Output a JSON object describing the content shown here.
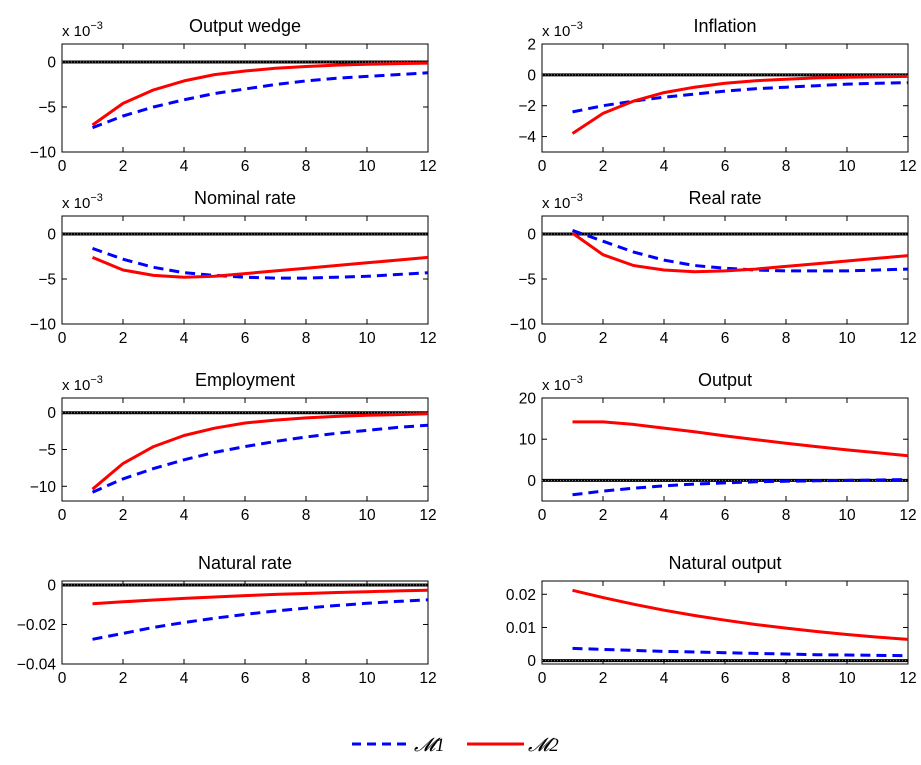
{
  "colors": {
    "m1": "#0000ff",
    "m2": "#ff0000",
    "zero_line": "#000000",
    "axes": "#000000"
  },
  "legend": {
    "placement": "bottom-center",
    "entries": [
      {
        "label": "𝓜1",
        "color": "#0000ff",
        "style": "dashed"
      },
      {
        "label": "𝓜2",
        "color": "#ff0000",
        "style": "solid"
      }
    ]
  },
  "chart_data": [
    {
      "type": "line",
      "title": "Output wedge",
      "scale_label": {
        "base": "x 10",
        "exp": "−3"
      },
      "xlim": [
        0,
        12
      ],
      "ylim": [
        -10,
        2
      ],
      "xticks": [
        0,
        2,
        4,
        6,
        8,
        10,
        12
      ],
      "yticks": [
        -10,
        -5,
        0
      ],
      "ytick_labels": [
        "−10",
        "−5",
        "0"
      ],
      "grid": false,
      "zero_line": true,
      "x": [
        1,
        2,
        3,
        4,
        5,
        6,
        7,
        8,
        9,
        10,
        11,
        12
      ],
      "series": [
        {
          "name": "𝓜1",
          "values": [
            -7.3,
            -6.0,
            -5.0,
            -4.2,
            -3.5,
            -3.0,
            -2.5,
            -2.1,
            -1.8,
            -1.6,
            -1.4,
            -1.2
          ]
        },
        {
          "name": "𝓜2",
          "values": [
            -7.0,
            -4.6,
            -3.1,
            -2.1,
            -1.4,
            -1.0,
            -0.7,
            -0.5,
            -0.35,
            -0.25,
            -0.18,
            -0.12
          ]
        }
      ]
    },
    {
      "type": "line",
      "title": "Inflation",
      "scale_label": {
        "base": "x 10",
        "exp": "−3"
      },
      "xlim": [
        0,
        12
      ],
      "ylim": [
        -5,
        2
      ],
      "xticks": [
        0,
        2,
        4,
        6,
        8,
        10,
        12
      ],
      "yticks": [
        -4,
        -2,
        0,
        2
      ],
      "ytick_labels": [
        "−4",
        "−2",
        "0",
        "2"
      ],
      "grid": false,
      "zero_line": true,
      "x": [
        1,
        2,
        3,
        4,
        5,
        6,
        7,
        8,
        9,
        10,
        11,
        12
      ],
      "series": [
        {
          "name": "𝓜1",
          "values": [
            -2.4,
            -2.0,
            -1.7,
            -1.45,
            -1.25,
            -1.05,
            -0.9,
            -0.8,
            -0.7,
            -0.6,
            -0.55,
            -0.5
          ]
        },
        {
          "name": "𝓜2",
          "values": [
            -3.8,
            -2.5,
            -1.7,
            -1.15,
            -0.8,
            -0.55,
            -0.38,
            -0.28,
            -0.2,
            -0.15,
            -0.12,
            -0.1
          ]
        }
      ]
    },
    {
      "type": "line",
      "title": "Nominal rate",
      "scale_label": {
        "base": "x 10",
        "exp": "−3"
      },
      "xlim": [
        0,
        12
      ],
      "ylim": [
        -10,
        2
      ],
      "xticks": [
        0,
        2,
        4,
        6,
        8,
        10,
        12
      ],
      "yticks": [
        -10,
        -5,
        0
      ],
      "ytick_labels": [
        "−10",
        "−5",
        "0"
      ],
      "grid": false,
      "zero_line": true,
      "x": [
        1,
        2,
        3,
        4,
        5,
        6,
        7,
        8,
        9,
        10,
        11,
        12
      ],
      "series": [
        {
          "name": "𝓜1",
          "values": [
            -1.6,
            -2.8,
            -3.7,
            -4.3,
            -4.6,
            -4.8,
            -4.9,
            -4.9,
            -4.8,
            -4.7,
            -4.5,
            -4.3
          ]
        },
        {
          "name": "𝓜2",
          "values": [
            -2.6,
            -4.0,
            -4.6,
            -4.8,
            -4.7,
            -4.4,
            -4.1,
            -3.8,
            -3.5,
            -3.2,
            -2.9,
            -2.6
          ]
        }
      ]
    },
    {
      "type": "line",
      "title": "Real rate",
      "scale_label": {
        "base": "x 10",
        "exp": "−3"
      },
      "xlim": [
        0,
        12
      ],
      "ylim": [
        -10,
        2
      ],
      "xticks": [
        0,
        2,
        4,
        6,
        8,
        10,
        12
      ],
      "yticks": [
        -10,
        -5,
        0
      ],
      "ytick_labels": [
        "−10",
        "−5",
        "0"
      ],
      "grid": false,
      "zero_line": true,
      "x": [
        1,
        2,
        3,
        4,
        5,
        6,
        7,
        8,
        9,
        10,
        11,
        12
      ],
      "series": [
        {
          "name": "𝓜1",
          "values": [
            0.4,
            -0.8,
            -2.0,
            -2.9,
            -3.5,
            -3.8,
            -4.0,
            -4.1,
            -4.1,
            -4.1,
            -4.0,
            -3.9
          ]
        },
        {
          "name": "𝓜2",
          "values": [
            0.1,
            -2.3,
            -3.5,
            -4.0,
            -4.2,
            -4.1,
            -3.9,
            -3.6,
            -3.3,
            -3.0,
            -2.7,
            -2.4
          ]
        }
      ]
    },
    {
      "type": "line",
      "title": "Employment",
      "scale_label": {
        "base": "x 10",
        "exp": "−3"
      },
      "xlim": [
        0,
        12
      ],
      "ylim": [
        -12,
        2
      ],
      "xticks": [
        0,
        2,
        4,
        6,
        8,
        10,
        12
      ],
      "yticks": [
        -10,
        -5,
        0
      ],
      "ytick_labels": [
        "−10",
        "−5",
        "0"
      ],
      "grid": false,
      "zero_line": true,
      "x": [
        1,
        2,
        3,
        4,
        5,
        6,
        7,
        8,
        9,
        10,
        11,
        12
      ],
      "series": [
        {
          "name": "𝓜1",
          "values": [
            -10.8,
            -9.0,
            -7.6,
            -6.4,
            -5.4,
            -4.6,
            -3.9,
            -3.3,
            -2.8,
            -2.4,
            -2.0,
            -1.7
          ]
        },
        {
          "name": "𝓜2",
          "values": [
            -10.4,
            -6.9,
            -4.6,
            -3.1,
            -2.1,
            -1.4,
            -1.0,
            -0.7,
            -0.5,
            -0.35,
            -0.25,
            -0.15
          ]
        }
      ]
    },
    {
      "type": "line",
      "title": "Output",
      "scale_label": {
        "base": "x 10",
        "exp": "−3"
      },
      "xlim": [
        0,
        12
      ],
      "ylim": [
        -5,
        20
      ],
      "xticks": [
        0,
        2,
        4,
        6,
        8,
        10,
        12
      ],
      "yticks": [
        0,
        10,
        20
      ],
      "ytick_labels": [
        "0",
        "10",
        "20"
      ],
      "grid": false,
      "zero_line": true,
      "x": [
        1,
        2,
        3,
        4,
        5,
        6,
        7,
        8,
        9,
        10,
        11,
        12
      ],
      "series": [
        {
          "name": "𝓜1",
          "values": [
            -3.5,
            -2.6,
            -1.9,
            -1.3,
            -0.9,
            -0.6,
            -0.35,
            -0.2,
            -0.1,
            0.0,
            0.1,
            0.2
          ]
        },
        {
          "name": "𝓜2",
          "values": [
            14.2,
            14.2,
            13.6,
            12.7,
            11.8,
            10.8,
            9.9,
            9.0,
            8.2,
            7.4,
            6.7,
            6.0
          ]
        }
      ]
    },
    {
      "type": "line",
      "title": "Natural rate",
      "xlim": [
        0,
        12
      ],
      "ylim": [
        -0.04,
        0.002
      ],
      "xticks": [
        0,
        2,
        4,
        6,
        8,
        10,
        12
      ],
      "yticks": [
        -0.04,
        -0.02,
        0
      ],
      "ytick_labels": [
        "−0.04",
        "−0.02",
        "0"
      ],
      "grid": false,
      "zero_line": true,
      "x": [
        1,
        2,
        3,
        4,
        5,
        6,
        7,
        8,
        9,
        10,
        11,
        12
      ],
      "series": [
        {
          "name": "𝓜1",
          "values": [
            -0.0275,
            -0.0245,
            -0.0215,
            -0.019,
            -0.0168,
            -0.0149,
            -0.0132,
            -0.0117,
            -0.0104,
            -0.0093,
            -0.0083,
            -0.0075
          ]
        },
        {
          "name": "𝓜2",
          "values": [
            -0.0095,
            -0.0085,
            -0.0076,
            -0.0068,
            -0.0061,
            -0.0054,
            -0.0048,
            -0.0043,
            -0.0038,
            -0.0034,
            -0.003,
            -0.0027
          ]
        }
      ]
    },
    {
      "type": "line",
      "title": "Natural output",
      "xlim": [
        0,
        12
      ],
      "ylim": [
        -0.001,
        0.024
      ],
      "xticks": [
        0,
        2,
        4,
        6,
        8,
        10,
        12
      ],
      "yticks": [
        0,
        0.01,
        0.02
      ],
      "ytick_labels": [
        "0",
        "0.01",
        "0.02"
      ],
      "grid": false,
      "zero_line": true,
      "x": [
        1,
        2,
        3,
        4,
        5,
        6,
        7,
        8,
        9,
        10,
        11,
        12
      ],
      "series": [
        {
          "name": "𝓜1",
          "values": [
            0.0037,
            0.0034,
            0.0031,
            0.0028,
            0.0026,
            0.0024,
            0.0022,
            0.002,
            0.0018,
            0.0017,
            0.0016,
            0.0015
          ]
        },
        {
          "name": "𝓜2",
          "values": [
            0.0212,
            0.019,
            0.017,
            0.0152,
            0.0136,
            0.0122,
            0.0109,
            0.0098,
            0.0088,
            0.0079,
            0.0071,
            0.0064
          ]
        }
      ]
    }
  ]
}
